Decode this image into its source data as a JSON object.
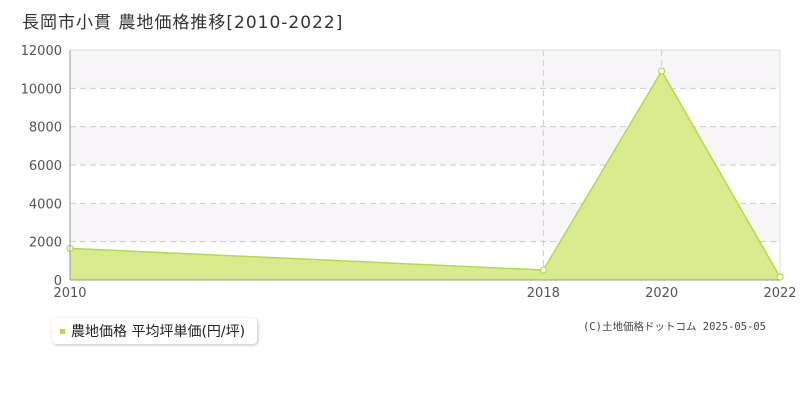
{
  "header": {
    "title": "長岡市小貫 農地価格推移[2010-2022]"
  },
  "chart_data": {
    "type": "area",
    "x": [
      "2010",
      "2018",
      "2020",
      "2022"
    ],
    "series": [
      {
        "name": "農地価格 平均坪単価(円/坪)",
        "values": [
          1650,
          520,
          10900,
          150
        ]
      }
    ],
    "ylim": [
      0,
      12000
    ],
    "yticks": [
      "0",
      "2000",
      "4000",
      "6000",
      "8000",
      "10000",
      "12000"
    ],
    "grid": true,
    "legend_position": "bottom-left",
    "colors": {
      "fill": "#d9eb8f",
      "line": "#b5dc3c",
      "band": "#f7f5f7",
      "grid": "#cccccc"
    }
  },
  "legend": {
    "label": "農地価格 平均坪単価(円/坪)"
  },
  "footer": {
    "copyright": "(C)土地価格ドットコム 2025-05-05"
  }
}
